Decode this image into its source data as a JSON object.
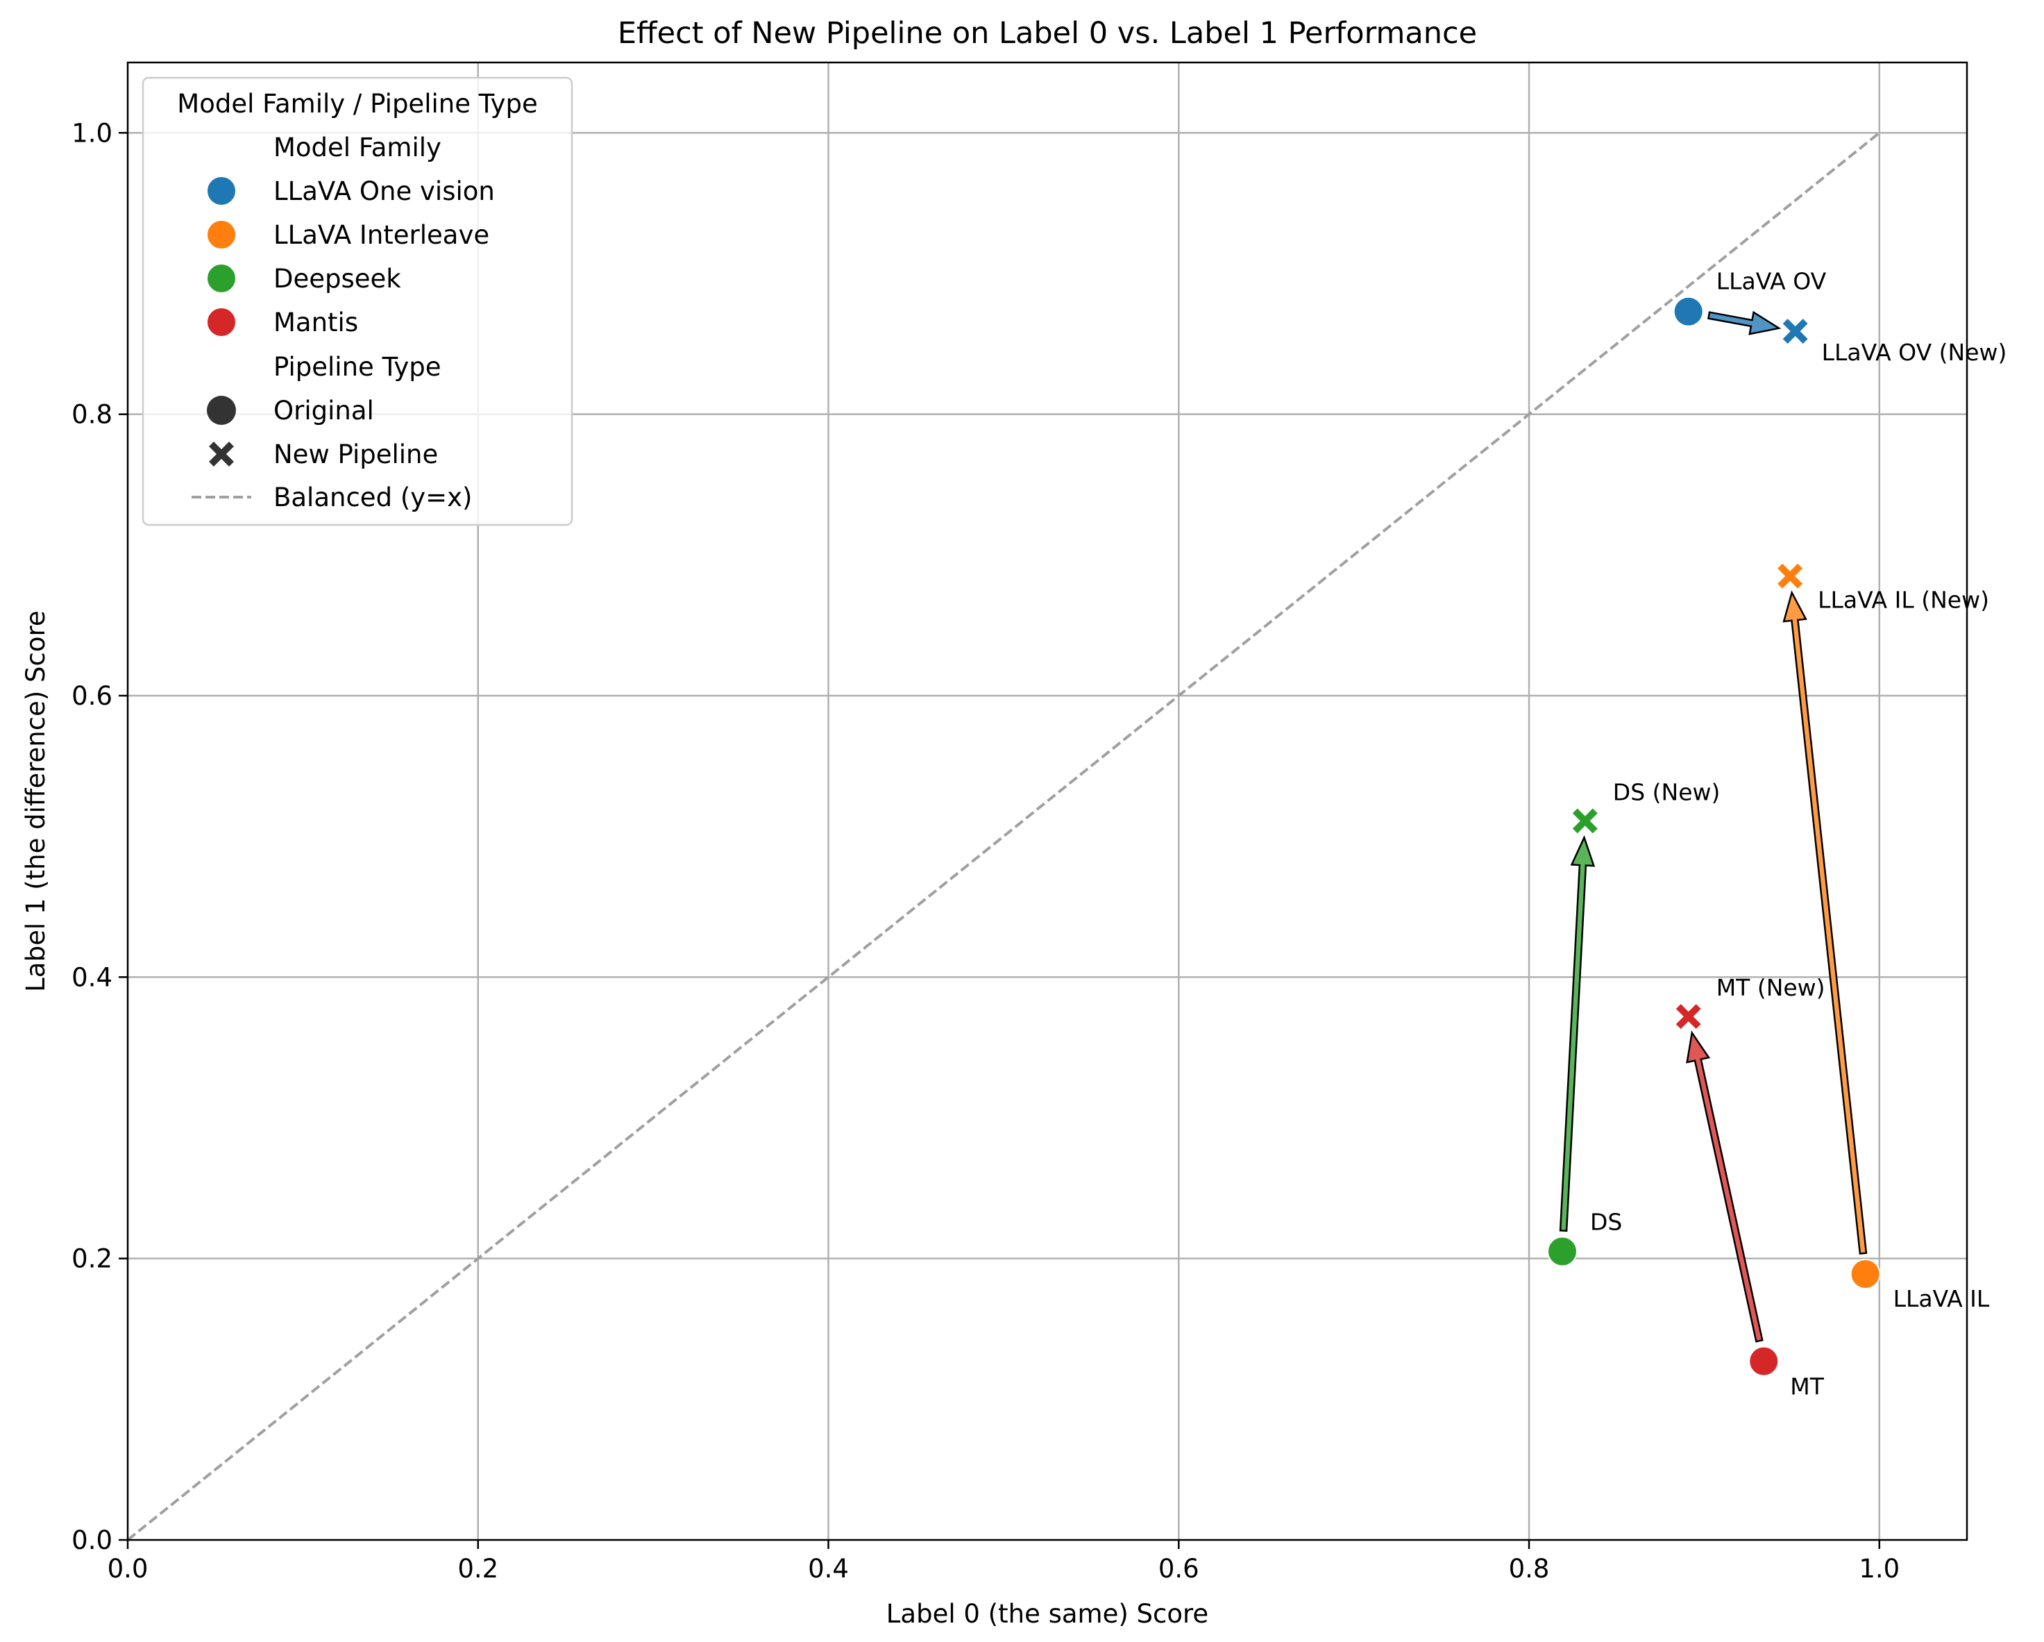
{
  "chart_data": {
    "type": "scatter",
    "title": "Effect of New Pipeline on Label 0 vs. Label 1 Performance",
    "xlabel": "Label 0 (the same) Score",
    "ylabel": "Label 1 (the difference) Score",
    "xlim": [
      0,
      1.05
    ],
    "ylim": [
      0,
      1.05
    ],
    "xticks": [
      "0.0",
      "0.2",
      "0.4",
      "0.6",
      "0.8",
      "1.0"
    ],
    "yticks": [
      "0.0",
      "0.2",
      "0.4",
      "0.6",
      "0.8",
      "1.0"
    ],
    "grid": true,
    "legend": {
      "placement": "upper-left",
      "title": "Model Family / Pipeline Type",
      "family_header": "Model Family",
      "pipeline_header": "Pipeline Type",
      "families": [
        {
          "name": "LLaVA One vision",
          "color": "#1f77b4"
        },
        {
          "name": "LLaVA Interleave",
          "color": "#ff7f0e"
        },
        {
          "name": "Deepseek",
          "color": "#2ca02c"
        },
        {
          "name": "Mantis",
          "color": "#d62728"
        }
      ],
      "pipelines": [
        {
          "name": "Original",
          "marker": "circle"
        },
        {
          "name": "New Pipeline",
          "marker": "x"
        }
      ],
      "reference_line": "Balanced (y=x)"
    },
    "series": [
      {
        "name": "LLaVA One vision",
        "color": "#1f77b4",
        "original": {
          "x": 0.891,
          "y": 0.873,
          "label": "LLaVA OV"
        },
        "new": {
          "x": 0.952,
          "y": 0.859,
          "label": "LLaVA OV (New)"
        }
      },
      {
        "name": "LLaVA Interleave",
        "color": "#ff7f0e",
        "original": {
          "x": 0.992,
          "y": 0.189,
          "label": "LLaVA IL"
        },
        "new": {
          "x": 0.949,
          "y": 0.685,
          "label": "LLaVA IL (New)"
        }
      },
      {
        "name": "Deepseek",
        "color": "#2ca02c",
        "original": {
          "x": 0.819,
          "y": 0.205,
          "label": "DS"
        },
        "new": {
          "x": 0.832,
          "y": 0.511,
          "label": "DS (New)"
        }
      },
      {
        "name": "Mantis",
        "color": "#d62728",
        "original": {
          "x": 0.934,
          "y": 0.127,
          "label": "MT"
        },
        "new": {
          "x": 0.891,
          "y": 0.372,
          "label": "MT (New)"
        }
      }
    ],
    "reference": {
      "type": "line",
      "x": [
        0,
        1
      ],
      "y": [
        0,
        1
      ],
      "style": "dashed",
      "color": "#a0a0a0"
    }
  }
}
